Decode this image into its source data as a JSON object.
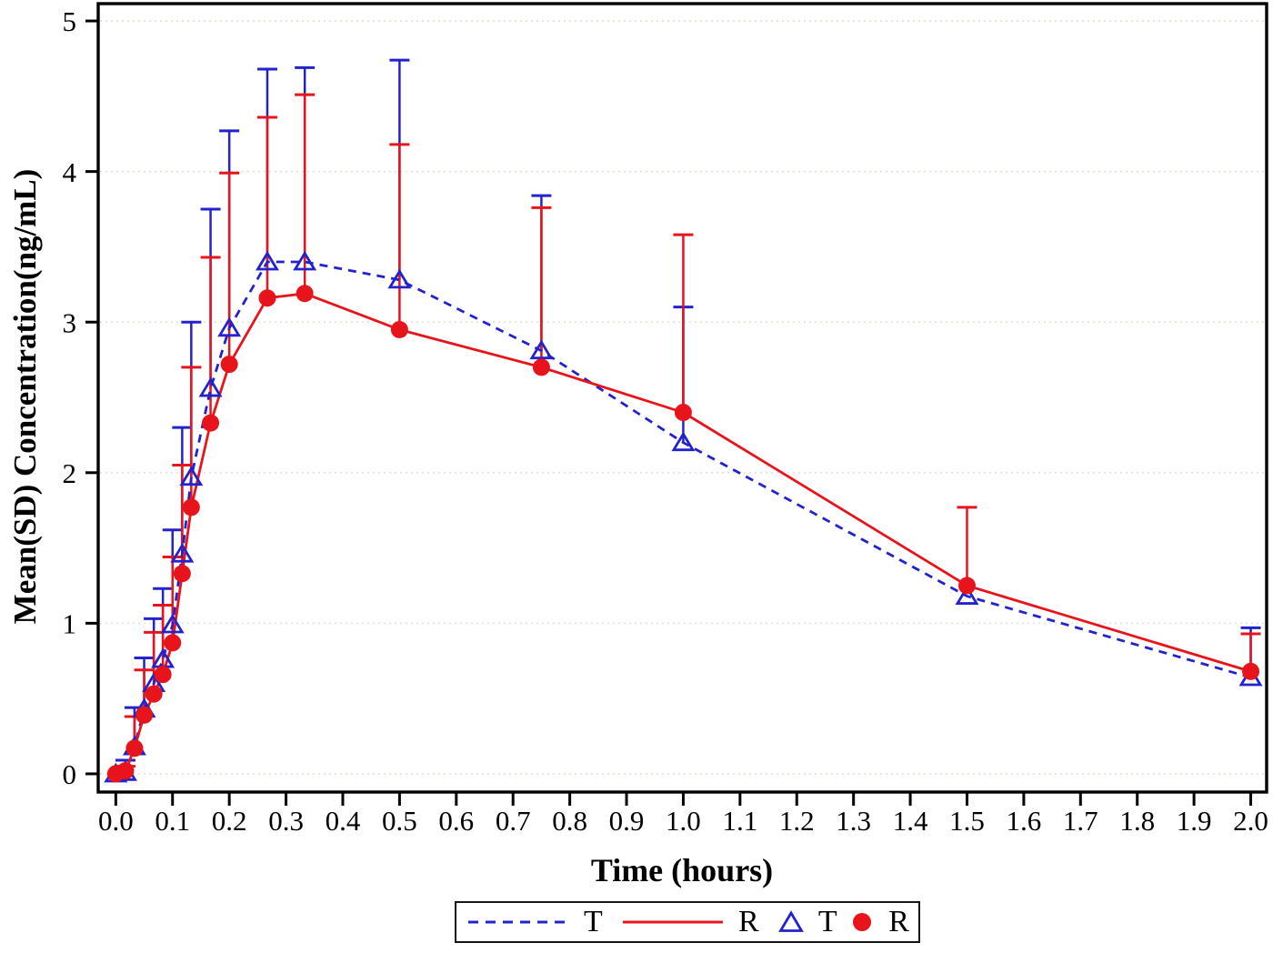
{
  "figure": {
    "x_axis_title": "Time (hours)",
    "y_axis_title": "Mean(SD) Concentration(ng/mL)"
  },
  "legend": {
    "items": [
      {
        "label": "T",
        "swatch": "dashed-line",
        "color": "#2323cd"
      },
      {
        "label": "R",
        "swatch": "solid-line",
        "color": "#e8141c"
      },
      {
        "label": "T",
        "swatch": "open-triangle",
        "color": "#2323cd"
      },
      {
        "label": "R",
        "swatch": "filled-circle",
        "color": "#e8141c"
      }
    ]
  },
  "chart_data": {
    "type": "line",
    "title": "",
    "xlabel": "Time (hours)",
    "ylabel": "Mean(SD) Concentration(ng/mL)",
    "xlim": [
      -0.031,
      2.028
    ],
    "ylim": [
      -0.121,
      5.115
    ],
    "grid": "horizontal-dotted",
    "legend_position": "bottom-outside",
    "error_bars": "upper-SD-only",
    "x_ticks": {
      "values": [
        0.0,
        0.1,
        0.2,
        0.3,
        0.4,
        0.5,
        0.6,
        0.7,
        0.8,
        0.9,
        1.0,
        1.1,
        1.2,
        1.3,
        1.4,
        1.5,
        1.6,
        1.7,
        1.8,
        1.9,
        2.0
      ],
      "labels": [
        "0.0",
        "0.1",
        "0.2",
        "0.3",
        "0.4",
        "0.5",
        "0.6",
        "0.7",
        "0.8",
        "0.9",
        "1.0",
        "1.1",
        "1.2",
        "1.3",
        "1.4",
        "1.5",
        "1.6",
        "1.7",
        "1.8",
        "1.9",
        "2.0"
      ]
    },
    "y_ticks": {
      "values": [
        0,
        1,
        2,
        3,
        4,
        5
      ],
      "labels": [
        "0",
        "1",
        "2",
        "3",
        "4",
        "5"
      ]
    },
    "x": [
      0,
      0.017,
      0.033,
      0.05,
      0.067,
      0.083,
      0.1,
      0.117,
      0.133,
      0.167,
      0.2,
      0.267,
      0.333,
      0.5,
      0.75,
      1.0,
      1.5,
      2.0
    ],
    "series": [
      {
        "name": "T",
        "color": "#2323cd",
        "line_style": "dashed",
        "marker": "open-triangle",
        "values": [
          0.0,
          0.01,
          0.18,
          0.43,
          0.6,
          0.76,
          0.99,
          1.46,
          1.97,
          2.56,
          2.96,
          3.4,
          3.4,
          3.28,
          2.81,
          2.2,
          1.18,
          0.64
        ],
        "upper_sd": [
          null,
          0.09,
          0.44,
          0.77,
          1.03,
          1.23,
          1.62,
          2.3,
          3.0,
          3.75,
          4.27,
          4.68,
          4.69,
          4.74,
          3.84,
          3.1,
          null,
          0.97
        ]
      },
      {
        "name": "R",
        "color": "#e8141c",
        "line_style": "solid",
        "marker": "filled-circle",
        "values": [
          0.0,
          0.02,
          0.17,
          0.39,
          0.53,
          0.66,
          0.87,
          1.33,
          1.77,
          2.33,
          2.72,
          3.16,
          3.19,
          2.95,
          2.7,
          2.4,
          1.25,
          0.68
        ],
        "upper_sd": [
          null,
          0.05,
          0.38,
          0.69,
          0.94,
          1.12,
          1.44,
          2.05,
          2.7,
          3.43,
          3.99,
          4.36,
          4.51,
          4.18,
          3.76,
          3.58,
          1.77,
          0.93
        ]
      }
    ],
    "style": {
      "grid_color": "#e7e4d5",
      "axis_color": "#000000"
    }
  }
}
